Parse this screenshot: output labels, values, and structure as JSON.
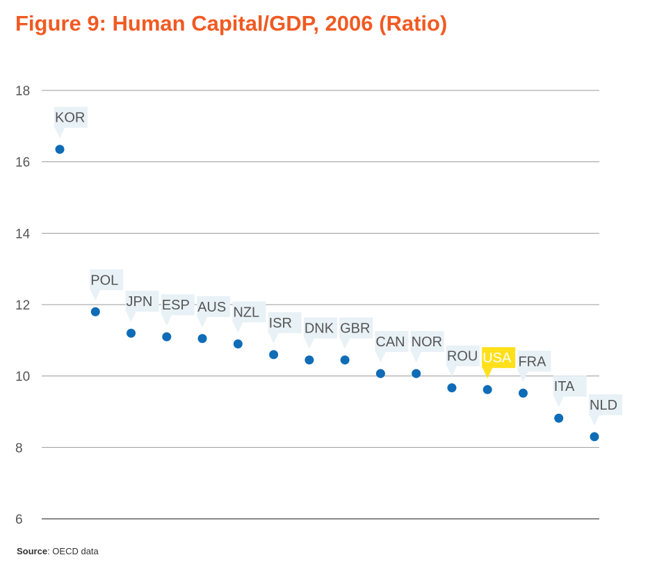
{
  "title": "Figure 9: Human Capital/GDP, 2006 (Ratio)",
  "source": {
    "label": "Source",
    "text": ": OECD data"
  },
  "colors": {
    "title": "#f05a22",
    "point": "#0f6cb6",
    "label_bg": "#e8f1f6",
    "highlight_bg": "#ffe01b",
    "grid": "#999999",
    "axis_text": "#555555"
  },
  "chart_data": {
    "type": "scatter",
    "title": "Figure 9: Human Capital/GDP, 2006 (Ratio)",
    "xlabel": "",
    "ylabel": "",
    "ylim": [
      6,
      18
    ],
    "yticks": [
      6,
      8,
      10,
      12,
      14,
      16,
      18
    ],
    "grid": true,
    "highlight": "USA",
    "categories": [
      "KOR",
      "POL",
      "JPN",
      "ESP",
      "AUS",
      "NZL",
      "ISR",
      "DNK",
      "GBR",
      "CAN",
      "NOR",
      "ROU",
      "USA",
      "FRA",
      "ITA",
      "NLD"
    ],
    "values": [
      16.35,
      11.8,
      11.2,
      11.1,
      11.05,
      10.9,
      10.6,
      10.45,
      10.45,
      10.07,
      10.07,
      9.67,
      9.62,
      9.52,
      8.82,
      8.3
    ]
  }
}
